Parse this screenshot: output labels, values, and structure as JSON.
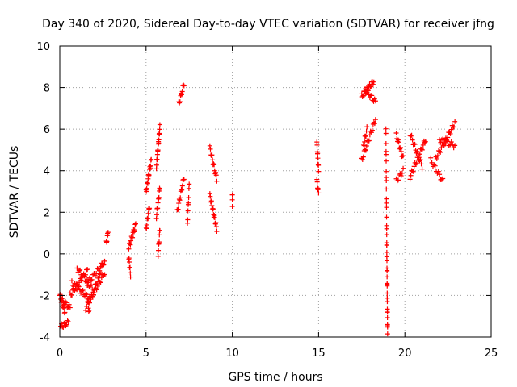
{
  "chart_data": {
    "type": "scatter",
    "title": "Day 340 of 2020, Sidereal Day-to-day VTEC variation (SDTVAR) for receiver jfng",
    "xlabel": "GPS time / hours",
    "ylabel": "SDTVAR / TECUs",
    "xlim": [
      0,
      25
    ],
    "ylim": [
      -4,
      10
    ],
    "xticks": [
      "0",
      "5",
      "10",
      "15",
      "20",
      "25"
    ],
    "yticks": [
      "-4",
      "-2",
      "0",
      "2",
      "4",
      "6",
      "8",
      "10"
    ],
    "grid": true,
    "marker": "+",
    "color": "#ff0000",
    "segments": [
      {
        "x0": 0.0,
        "x1": 0.3,
        "y0": -2.0,
        "y1": -2.8,
        "n": 12
      },
      {
        "x0": 0.1,
        "x1": 0.6,
        "y0": -2.2,
        "y1": -2.6,
        "n": 10
      },
      {
        "x0": 0.05,
        "x1": 0.5,
        "y0": -3.5,
        "y1": -3.3,
        "n": 10
      },
      {
        "x0": 0.6,
        "x1": 1.6,
        "y0": -2.0,
        "y1": -0.8,
        "n": 20
      },
      {
        "x0": 0.7,
        "x1": 1.8,
        "y0": -1.4,
        "y1": -2.2,
        "n": 20
      },
      {
        "x0": 1.0,
        "x1": 2.0,
        "y0": -0.7,
        "y1": -1.8,
        "n": 18
      },
      {
        "x0": 1.5,
        "x1": 2.6,
        "y0": -2.6,
        "y1": -0.9,
        "n": 20
      },
      {
        "x0": 1.6,
        "x1": 2.5,
        "y0": -1.4,
        "y1": -0.5,
        "n": 15
      },
      {
        "x0": 2.0,
        "x1": 2.6,
        "y0": -1.7,
        "y1": -0.3,
        "n": 12
      },
      {
        "x0": 1.6,
        "x1": 1.7,
        "y0": -2.2,
        "y1": -2.8,
        "n": 6
      },
      {
        "x0": 2.7,
        "x1": 2.8,
        "y0": 0.5,
        "y1": 1.1,
        "n": 7
      },
      {
        "x0": 4.0,
        "x1": 4.1,
        "y0": -0.2,
        "y1": -1.0,
        "n": 8
      },
      {
        "x0": 4.0,
        "x1": 4.4,
        "y0": 0.3,
        "y1": 1.4,
        "n": 14
      },
      {
        "x0": 5.0,
        "x1": 5.3,
        "y0": 3.0,
        "y1": 4.5,
        "n": 16
      },
      {
        "x0": 5.0,
        "x1": 5.2,
        "y0": 1.2,
        "y1": 2.3,
        "n": 10
      },
      {
        "x0": 5.6,
        "x1": 5.8,
        "y0": 4.2,
        "y1": 6.1,
        "n": 18
      },
      {
        "x0": 5.6,
        "x1": 5.8,
        "y0": 1.8,
        "y1": 3.2,
        "n": 12
      },
      {
        "x0": 5.7,
        "x1": 5.8,
        "y0": 0.0,
        "y1": 1.2,
        "n": 8
      },
      {
        "x0": 6.8,
        "x1": 7.2,
        "y0": 2.0,
        "y1": 3.7,
        "n": 14
      },
      {
        "x0": 6.9,
        "x1": 7.2,
        "y0": 7.2,
        "y1": 8.2,
        "n": 10
      },
      {
        "x0": 7.4,
        "x1": 7.5,
        "y0": 1.5,
        "y1": 3.3,
        "n": 8
      },
      {
        "x0": 8.7,
        "x1": 9.1,
        "y0": 5.1,
        "y1": 3.6,
        "n": 14
      },
      {
        "x0": 8.7,
        "x1": 9.1,
        "y0": 2.8,
        "y1": 1.2,
        "n": 18
      },
      {
        "x0": 10.0,
        "x1": 10.0,
        "y0": 2.4,
        "y1": 2.9,
        "n": 4
      },
      {
        "x0": 14.9,
        "x1": 15.0,
        "y0": 5.3,
        "y1": 4.0,
        "n": 10
      },
      {
        "x0": 14.9,
        "x1": 15.0,
        "y0": 3.5,
        "y1": 2.9,
        "n": 6
      },
      {
        "x0": 17.5,
        "x1": 18.2,
        "y0": 7.6,
        "y1": 8.3,
        "n": 18
      },
      {
        "x0": 17.7,
        "x1": 18.3,
        "y0": 7.9,
        "y1": 7.3,
        "n": 12
      },
      {
        "x0": 17.5,
        "x1": 18.3,
        "y0": 4.5,
        "y1": 6.5,
        "n": 18
      },
      {
        "x0": 17.6,
        "x1": 17.8,
        "y0": 5.2,
        "y1": 6.0,
        "n": 8
      },
      {
        "x0": 18.9,
        "x1": 18.95,
        "y0": 6.0,
        "y1": 0.5,
        "n": 18
      },
      {
        "x0": 18.95,
        "x1": 19.0,
        "y0": 0.5,
        "y1": -4.0,
        "n": 26
      },
      {
        "x0": 19.5,
        "x1": 19.9,
        "y0": 5.7,
        "y1": 4.6,
        "n": 12
      },
      {
        "x0": 19.5,
        "x1": 19.9,
        "y0": 3.5,
        "y1": 4.0,
        "n": 8
      },
      {
        "x0": 20.3,
        "x1": 21.2,
        "y0": 3.7,
        "y1": 5.5,
        "n": 20
      },
      {
        "x0": 20.3,
        "x1": 21.0,
        "y0": 5.8,
        "y1": 4.2,
        "n": 16
      },
      {
        "x0": 21.5,
        "x1": 22.2,
        "y0": 4.5,
        "y1": 3.5,
        "n": 12
      },
      {
        "x0": 21.8,
        "x1": 22.9,
        "y0": 4.6,
        "y1": 6.3,
        "n": 22
      },
      {
        "x0": 22.0,
        "x1": 22.9,
        "y0": 5.5,
        "y1": 5.2,
        "n": 14
      }
    ]
  }
}
